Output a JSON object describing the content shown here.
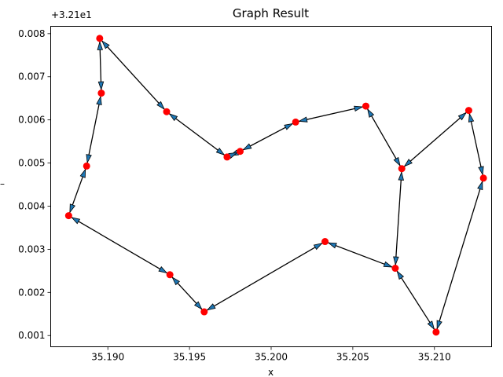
{
  "chart_data": {
    "type": "graph",
    "title": "Graph Result",
    "xlabel": "x",
    "ylabel": "–",
    "y_offset_label": "+3.21e1",
    "xlim": [
      35.1865,
      35.2135
    ],
    "ylim": [
      0.00074,
      0.00817
    ],
    "xticks": [
      35.19,
      35.195,
      35.2,
      35.205,
      35.21
    ],
    "xtick_labels": [
      "35.190",
      "35.195",
      "35.200",
      "35.205",
      "35.210"
    ],
    "yticks": [
      0.001,
      0.002,
      0.003,
      0.004,
      0.005,
      0.006,
      0.007,
      0.008
    ],
    "ytick_labels": [
      "0.001",
      "0.002",
      "0.003",
      "0.004",
      "0.005",
      "0.006",
      "0.007",
      "0.008"
    ],
    "node_color": "#ff0000",
    "edge_color": "#000000",
    "arrow_color": "#1f77b4",
    "nodes": [
      {
        "x": 35.1895,
        "y": 0.00789
      },
      {
        "x": 35.1896,
        "y": 0.00662
      },
      {
        "x": 35.1887,
        "y": 0.00493
      },
      {
        "x": 35.1876,
        "y": 0.00378
      },
      {
        "x": 35.1938,
        "y": 0.00241
      },
      {
        "x": 35.1959,
        "y": 0.00155
      },
      {
        "x": 35.2033,
        "y": 0.00318
      },
      {
        "x": 35.2076,
        "y": 0.00256
      },
      {
        "x": 35.2101,
        "y": 0.00108
      },
      {
        "x": 35.213,
        "y": 0.00465
      },
      {
        "x": 35.2121,
        "y": 0.00622
      },
      {
        "x": 35.208,
        "y": 0.00487
      },
      {
        "x": 35.2058,
        "y": 0.00632
      },
      {
        "x": 35.2015,
        "y": 0.00595
      },
      {
        "x": 35.1981,
        "y": 0.00527
      },
      {
        "x": 35.1973,
        "y": 0.00514
      },
      {
        "x": 35.1936,
        "y": 0.00619
      }
    ],
    "edges": [
      [
        0,
        1
      ],
      [
        1,
        2
      ],
      [
        2,
        3
      ],
      [
        3,
        4
      ],
      [
        4,
        5
      ],
      [
        5,
        6
      ],
      [
        6,
        7
      ],
      [
        7,
        8
      ],
      [
        8,
        9
      ],
      [
        9,
        10
      ],
      [
        10,
        11
      ],
      [
        11,
        12
      ],
      [
        12,
        13
      ],
      [
        13,
        14
      ],
      [
        14,
        15
      ],
      [
        15,
        16
      ],
      [
        16,
        0
      ],
      [
        11,
        7
      ]
    ]
  }
}
